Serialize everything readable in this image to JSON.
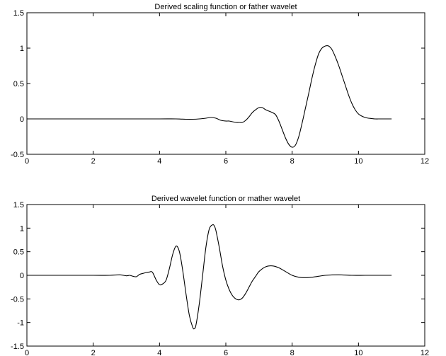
{
  "chart_data": [
    {
      "type": "line",
      "title": "Derived scaling function or father wavelet",
      "xlabel": "",
      "ylabel": "",
      "xlim": [
        0,
        12
      ],
      "ylim": [
        -0.5,
        1.5
      ],
      "xticks": [
        "0",
        "2",
        "4",
        "6",
        "8",
        "10",
        "12"
      ],
      "yticks": [
        "1.5",
        "1",
        "0.5",
        "0",
        "-0.5"
      ],
      "grid": false,
      "line_color": "#000000",
      "series": [
        {
          "x": [
            0,
            1,
            2,
            3,
            4,
            4.5,
            4.8,
            5.0,
            5.2,
            5.4,
            5.55,
            5.7,
            5.85,
            6.0,
            6.1,
            6.2,
            6.3,
            6.4,
            6.5,
            6.6,
            6.7,
            6.8,
            6.9,
            7.0,
            7.1,
            7.2,
            7.3,
            7.4,
            7.5,
            7.6,
            7.7,
            7.8,
            7.9,
            8.0,
            8.1,
            8.2,
            8.3,
            8.4,
            8.5,
            8.6,
            8.7,
            8.8,
            8.9,
            9.0,
            9.1,
            9.2,
            9.3,
            9.4,
            9.5,
            9.6,
            9.7,
            9.8,
            9.9,
            10.0,
            10.1,
            10.2,
            10.3,
            10.4,
            10.5,
            10.6,
            10.7,
            10.8,
            10.9,
            11.0
          ],
          "y": [
            0,
            0,
            0,
            0,
            0,
            0,
            -0.005,
            -0.005,
            0,
            0.01,
            0.02,
            0.01,
            -0.02,
            -0.03,
            -0.03,
            -0.04,
            -0.05,
            -0.05,
            -0.05,
            -0.02,
            0.03,
            0.09,
            0.13,
            0.16,
            0.16,
            0.13,
            0.11,
            0.09,
            0.06,
            -0.03,
            -0.15,
            -0.27,
            -0.36,
            -0.4,
            -0.37,
            -0.25,
            -0.06,
            0.15,
            0.36,
            0.58,
            0.77,
            0.92,
            1.0,
            1.03,
            1.03,
            0.98,
            0.88,
            0.76,
            0.62,
            0.48,
            0.34,
            0.22,
            0.13,
            0.07,
            0.04,
            0.02,
            0.01,
            0.005,
            0,
            0,
            0,
            0,
            0,
            0
          ]
        }
      ]
    },
    {
      "type": "line",
      "title": "Derived wavelet function or mather wavelet",
      "xlabel": "",
      "ylabel": "",
      "xlim": [
        0,
        12
      ],
      "ylim": [
        -1.5,
        1.5
      ],
      "xticks": [
        "0",
        "2",
        "4",
        "6",
        "8",
        "10",
        "12"
      ],
      "yticks": [
        "1.5",
        "1",
        "0.5",
        "0",
        "-0.5",
        "-1",
        "-1.5"
      ],
      "grid": false,
      "line_color": "#000000",
      "series": [
        {
          "x": [
            0,
            1,
            2,
            2.5,
            2.8,
            3.0,
            3.1,
            3.2,
            3.3,
            3.4,
            3.5,
            3.6,
            3.7,
            3.75,
            3.8,
            3.9,
            4.0,
            4.1,
            4.2,
            4.3,
            4.4,
            4.5,
            4.6,
            4.7,
            4.8,
            4.9,
            5.0,
            5.05,
            5.1,
            5.2,
            5.3,
            5.4,
            5.5,
            5.6,
            5.65,
            5.7,
            5.8,
            5.9,
            6.0,
            6.1,
            6.2,
            6.3,
            6.4,
            6.5,
            6.6,
            6.7,
            6.8,
            6.9,
            7.0,
            7.2,
            7.4,
            7.6,
            7.8,
            8.0,
            8.2,
            8.4,
            8.6,
            8.8,
            9.0,
            9.4,
            9.8,
            10.2,
            10.6,
            11.0
          ],
          "y": [
            0,
            0,
            0,
            0,
            0.01,
            -0.01,
            0,
            -0.02,
            -0.03,
            0.02,
            0.04,
            0.06,
            0.07,
            0.08,
            0.05,
            -0.1,
            -0.2,
            -0.18,
            -0.1,
            0.15,
            0.45,
            0.62,
            0.5,
            0.1,
            -0.4,
            -0.85,
            -1.1,
            -1.13,
            -1.05,
            -0.6,
            0.0,
            0.6,
            0.98,
            1.07,
            1.05,
            0.95,
            0.6,
            0.2,
            -0.1,
            -0.3,
            -0.43,
            -0.5,
            -0.52,
            -0.48,
            -0.38,
            -0.25,
            -0.12,
            -0.02,
            0.08,
            0.18,
            0.2,
            0.16,
            0.08,
            0.0,
            -0.04,
            -0.05,
            -0.04,
            -0.02,
            0.0,
            0.01,
            0.0,
            0.0,
            0.0,
            0.0
          ]
        }
      ]
    }
  ]
}
